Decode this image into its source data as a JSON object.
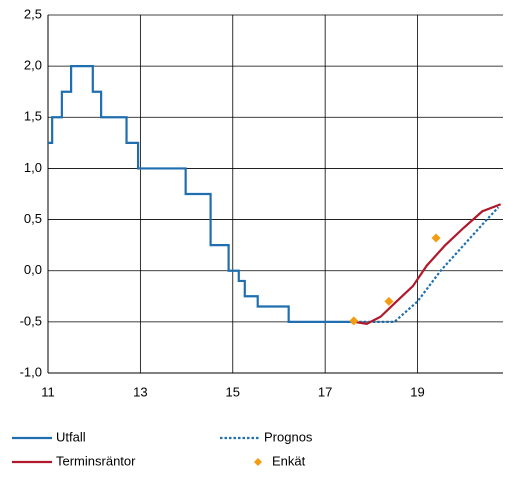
{
  "chart_data": {
    "type": "line",
    "xlim": [
      11,
      20.85
    ],
    "xticks": [
      11,
      13,
      15,
      17,
      19
    ],
    "ylim": [
      -1.0,
      2.5
    ],
    "yticks": [
      {
        "value": -1.0,
        "label": "-1,0"
      },
      {
        "value": -0.5,
        "label": "-0,5"
      },
      {
        "value": 0,
        "label": "0,0"
      },
      {
        "value": 0.5,
        "label": "0,5"
      },
      {
        "value": 1.0,
        "label": "1,0"
      },
      {
        "value": 1.5,
        "label": "1,5"
      },
      {
        "value": 2.0,
        "label": "2,0"
      },
      {
        "value": 2.5,
        "label": "2,5"
      }
    ],
    "grid": true,
    "series": [
      {
        "name": "Utfall",
        "color": "#1f6fb0",
        "style": "solid",
        "x": [
          11,
          11.09,
          11.09,
          11.3,
          11.3,
          11.5,
          11.5,
          11.97,
          11.97,
          12.15,
          12.15,
          12.7,
          12.7,
          12.95,
          12.95,
          13.98,
          13.98,
          14.52,
          14.52,
          14.91,
          14.91,
          15.13,
          15.13,
          15.26,
          15.26,
          15.54,
          15.54,
          16.21,
          16.21,
          17.64
        ],
        "values": [
          1.25,
          1.25,
          1.5,
          1.5,
          1.75,
          1.75,
          2.0,
          2.0,
          1.75,
          1.75,
          1.5,
          1.5,
          1.25,
          1.25,
          1.0,
          1.0,
          0.75,
          0.75,
          0.25,
          0.25,
          0.0,
          0.0,
          -0.1,
          -0.1,
          -0.25,
          -0.25,
          -0.35,
          -0.35,
          -0.5,
          -0.5
        ]
      },
      {
        "name": "Prognos",
        "color": "#1f6fb0",
        "style": "dotted",
        "x": [
          17.64,
          18.0,
          18.5,
          19.0,
          19.5,
          20.0,
          20.5,
          20.75
        ],
        "values": [
          -0.5,
          -0.5,
          -0.5,
          -0.3,
          0.0,
          0.25,
          0.5,
          0.62
        ]
      },
      {
        "name": "Terminsräntor",
        "color": "#b0182b",
        "style": "solid",
        "x": [
          17.64,
          17.9,
          18.2,
          18.5,
          18.9,
          19.2,
          19.6,
          20.0,
          20.4,
          20.8
        ],
        "values": [
          -0.5,
          -0.52,
          -0.45,
          -0.32,
          -0.15,
          0.05,
          0.25,
          0.42,
          0.58,
          0.65
        ]
      },
      {
        "name": "Enkät",
        "color": "#f39c12",
        "style": "marker",
        "x": [
          17.62,
          18.38,
          19.4
        ],
        "values": [
          -0.49,
          -0.3,
          0.32
        ]
      }
    ]
  }
}
